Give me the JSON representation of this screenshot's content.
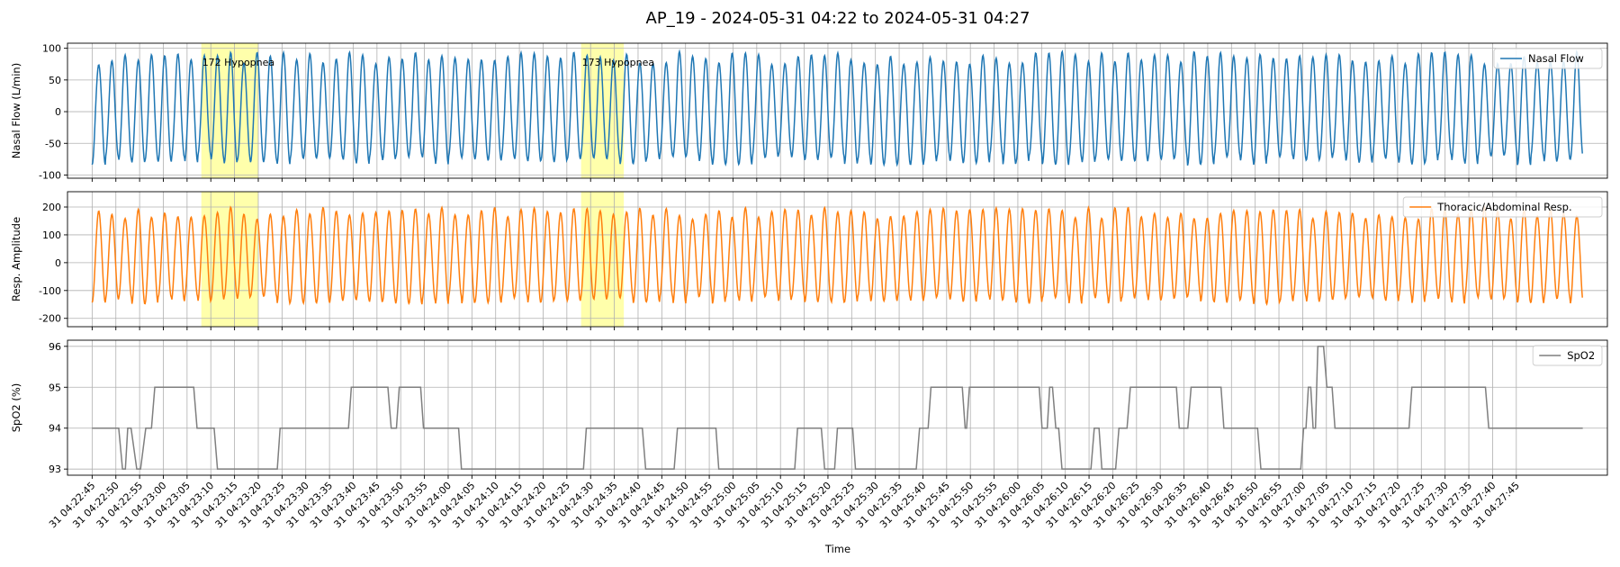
{
  "figure": {
    "title": "AP_19 - 2024-05-31 04:22 to 2024-05-31 04:27",
    "xlabel": "Time"
  },
  "chart_data": [
    {
      "type": "line",
      "ylabel": "Nasal Flow (L/min)",
      "ylim": [
        -105,
        108
      ],
      "yticks": [
        -100,
        -50,
        0,
        50,
        100
      ],
      "grid": true,
      "legend": "top-right",
      "series": [
        {
          "name": "Nasal Flow",
          "color": "#1f77b4",
          "baseline": 0,
          "peak_hi": 95,
          "peak_lo": -85,
          "period_s": 2.78
        }
      ]
    },
    {
      "type": "line",
      "ylabel": "Resp. Amplitude",
      "ylim": [
        -230,
        255
      ],
      "yticks": [
        -200,
        -100,
        0,
        100,
        200
      ],
      "grid": true,
      "legend": "top-right",
      "series": [
        {
          "name": "Thoracic/Abdominal Resp.",
          "color": "#ff7f0e",
          "baseline": 25,
          "peak_hi": 200,
          "peak_lo": -150,
          "period_s": 2.78
        }
      ]
    },
    {
      "type": "line",
      "ylabel": "SpO2 (%)",
      "ylim": [
        92.85,
        96.15
      ],
      "yticks": [
        93,
        94,
        95,
        96
      ],
      "grid": true,
      "legend": "top-right",
      "series": [
        {
          "name": "SpO2",
          "color": "#7f7f7f",
          "x_seconds": [
            0,
            5.6,
            6.4,
            7.0,
            7.5,
            8.2,
            9.4,
            10.2,
            11.3,
            12.5,
            13.2,
            21.4,
            22.1,
            25.7,
            26.4,
            39.0,
            39.6,
            54.0,
            54.6,
            62.3,
            63.0,
            64.1,
            64.7,
            69.2,
            69.8,
            77.2,
            77.8,
            103.5,
            104.1,
            115.9,
            116.6,
            122.6,
            123.3,
            131.4,
            132.0,
            148.0,
            148.6,
            153.6,
            154.3,
            156.4,
            157.0,
            160.2,
            160.8,
            173.6,
            174.3,
            176.1,
            176.7,
            183.3,
            183.9,
            184.2,
            184.8,
            199.5,
            200.1,
            201.2,
            201.7,
            202.3,
            203.0,
            203.6,
            204.3,
            210.4,
            211.1,
            212.1,
            212.7,
            215.6,
            216.3,
            218.0,
            218.7,
            228.4,
            229.0,
            230.8,
            231.5,
            237.8,
            238.4,
            245.5,
            246.2,
            254.6,
            255.2,
            255.7,
            256.2,
            256.7,
            257.2,
            257.7,
            258.2,
            259.4,
            260.1,
            261.2,
            261.8,
            277.4,
            278.0,
            293.5,
            294.2,
            314.0
          ],
          "values": [
            94,
            94,
            93,
            93,
            94,
            94,
            93,
            93,
            94,
            94,
            95,
            95,
            94,
            94,
            93,
            93,
            94,
            94,
            95,
            95,
            94,
            94,
            95,
            95,
            94,
            94,
            93,
            93,
            94,
            94,
            93,
            93,
            94,
            94,
            93,
            93,
            94,
            94,
            93,
            93,
            94,
            94,
            93,
            93,
            94,
            94,
            95,
            95,
            94,
            94,
            95,
            95,
            94,
            94,
            95,
            95,
            94,
            94,
            93,
            93,
            94,
            94,
            93,
            93,
            94,
            94,
            95,
            95,
            94,
            94,
            95,
            95,
            94,
            94,
            93,
            93,
            94,
            94,
            95,
            95,
            94,
            94,
            96,
            96,
            95,
            95,
            94,
            94,
            95,
            95,
            94,
            94
          ]
        }
      ]
    }
  ],
  "x_axis": {
    "start_s": 0,
    "end_s": 314,
    "tick_start_s": 0,
    "tick_step_s": 5,
    "tick_labels": [
      "31 04:22:45",
      "31 04:22:50",
      "31 04:22:55",
      "31 04:23:00",
      "31 04:23:05",
      "31 04:23:10",
      "31 04:23:15",
      "31 04:23:20",
      "31 04:23:25",
      "31 04:23:30",
      "31 04:23:35",
      "31 04:23:40",
      "31 04:23:45",
      "31 04:23:50",
      "31 04:23:55",
      "31 04:24:00",
      "31 04:24:05",
      "31 04:24:10",
      "31 04:24:15",
      "31 04:24:20",
      "31 04:24:25",
      "31 04:24:30",
      "31 04:24:35",
      "31 04:24:40",
      "31 04:24:45",
      "31 04:24:50",
      "31 04:24:55",
      "31 04:25:00",
      "31 04:25:05",
      "31 04:25:10",
      "31 04:25:15",
      "31 04:25:20",
      "31 04:25:25",
      "31 04:25:30",
      "31 04:25:35",
      "31 04:25:40",
      "31 04:25:45",
      "31 04:25:50",
      "31 04:25:55",
      "31 04:26:00",
      "31 04:26:05",
      "31 04:26:10",
      "31 04:26:15",
      "31 04:26:20",
      "31 04:26:25",
      "31 04:26:30",
      "31 04:26:35",
      "31 04:26:40",
      "31 04:26:45",
      "31 04:26:50",
      "31 04:26:55",
      "31 04:27:00",
      "31 04:27:05",
      "31 04:27:10",
      "31 04:27:15",
      "31 04:27:20",
      "31 04:27:25",
      "31 04:27:30",
      "31 04:27:35",
      "31 04:27:40",
      "31 04:27:45"
    ]
  },
  "events": [
    {
      "label": "172 Hypopnea",
      "start_s": 23.0,
      "end_s": 35.0,
      "color": "#ffff66"
    },
    {
      "label": "173 Hypopnea",
      "start_s": 103.0,
      "end_s": 112.0,
      "color": "#ffff66"
    }
  ]
}
